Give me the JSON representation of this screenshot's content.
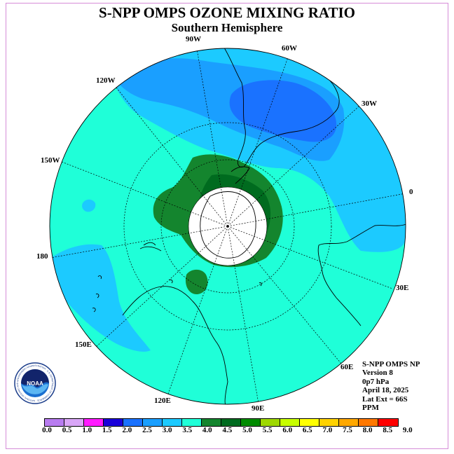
{
  "header": {
    "title": "S-NPP OMPS OZONE MIXING RATIO",
    "subtitle": "Southern Hemisphere"
  },
  "map": {
    "projection": "south-polar-stereographic",
    "longitude_labels": [
      "90W",
      "60W",
      "120W",
      "30W",
      "150W",
      "0",
      "180",
      "30E",
      "150E",
      "60E",
      "120E",
      "90E"
    ],
    "field_colors": {
      "background_level": "#1fffd8",
      "low_ozone": "#1ccaff",
      "lower_ozone": "#1a9fff",
      "lowest_ozone": "#1a72ff",
      "high_ozone": "#14852e",
      "highest_ozone": "#006b1f",
      "polar_no_data": "#ffffff"
    }
  },
  "info": {
    "instrument": "S-NPP OMPS NP",
    "version": "Version 8",
    "pressure": "0p7 hPa",
    "date": "April 18, 2025",
    "lat_ext": "Lat Ext = 66S",
    "units": "PPM"
  },
  "colorbar": {
    "labels": [
      "0.0",
      "0.5",
      "1.0",
      "1.5",
      "2.0",
      "2.5",
      "3.0",
      "3.5",
      "4.0",
      "4.5",
      "5.0",
      "5.5",
      "6.0",
      "6.5",
      "7.0",
      "7.5",
      "8.0",
      "8.5",
      "9.0"
    ],
    "colors": [
      "#b87cf0",
      "#d9a6f7",
      "#ff1aff",
      "#1a00d9",
      "#1a72ff",
      "#1a9fff",
      "#1ccaff",
      "#1fffd8",
      "#14852e",
      "#006b1f",
      "#008b00",
      "#9ed800",
      "#c8ff00",
      "#ffff00",
      "#ffd200",
      "#ffa800",
      "#ff7800",
      "#ff0000",
      "#7a4d30"
    ]
  },
  "logo": {
    "text": "NOAA",
    "ring_text": "NATIONAL OCEANIC AND ATMOSPHERIC ADMINISTRATION · U.S. DEPARTMENT OF COMMERCE"
  }
}
